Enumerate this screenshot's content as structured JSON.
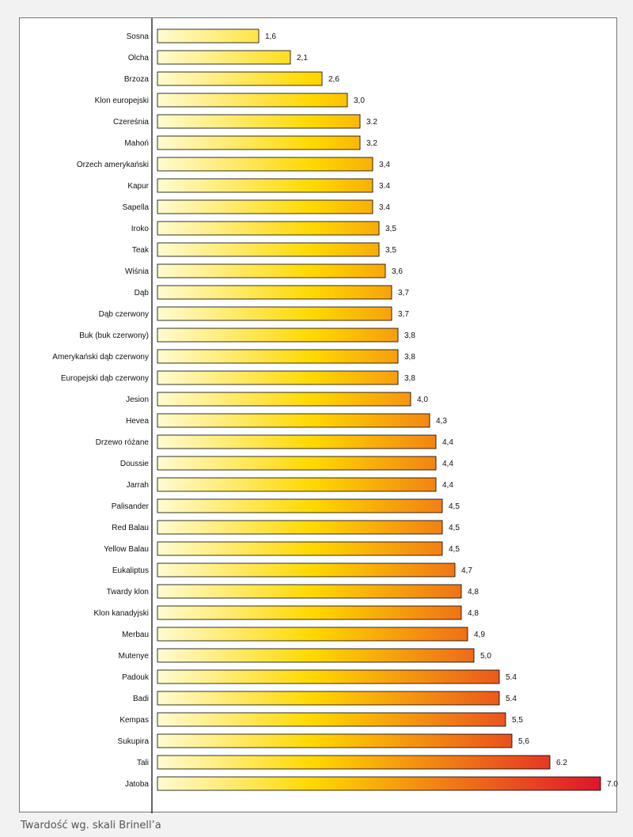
{
  "caption": "Twardość wg. skali Brinell’a",
  "chart_data": {
    "type": "bar",
    "orientation": "horizontal",
    "grid": false,
    "legend": "none",
    "xlim": [
      0,
      7
    ],
    "colors": {
      "gradient_start": "#fffbd0",
      "gradient_mid": "#ffd800",
      "gradient_end": "#e0142c",
      "bar_outline": "#000000",
      "axis": "#000000"
    },
    "categories": [
      "Sosna",
      "Olcha",
      "Brzoza",
      "Klon europejski",
      "Czereśnia",
      "Mahoń",
      "Orzech amerykański",
      "Kapur",
      "Sapella",
      "Iroko",
      "Teak",
      "Wiśnia",
      "Dąb",
      "Dąb czerwony",
      "Buk (buk czerwony)",
      "Amerykański dąb czerwony",
      "Europejski dąb czerwony",
      "Jesion",
      "Hevea",
      "Drzewo różane",
      "Doussie",
      "Jarrah",
      "Palisander",
      "Red Balau",
      "Yellow Balau",
      "Eukaliptus",
      "Twardy klon",
      "Klon kanadyjski",
      "Merbau",
      "Mutenye",
      "Padouk",
      "Badi",
      "Kempas",
      "Sukupira",
      "Tali",
      "Jatoba"
    ],
    "values": [
      1.6,
      2.1,
      2.6,
      3.0,
      3.2,
      3.2,
      3.4,
      3.4,
      3.4,
      3.5,
      3.5,
      3.6,
      3.7,
      3.7,
      3.8,
      3.8,
      3.8,
      4.0,
      4.3,
      4.4,
      4.4,
      4.4,
      4.5,
      4.5,
      4.5,
      4.7,
      4.8,
      4.8,
      4.9,
      5.0,
      5.4,
      5.4,
      5.5,
      5.6,
      6.2,
      7.0
    ],
    "value_labels": [
      "1,6",
      "2,1",
      "2,6",
      "3,0",
      "3.2",
      "3,2",
      "3,4",
      "3.4",
      "3.4",
      "3,5",
      "3,5",
      "3,6",
      "3,7",
      "3,7",
      "3,8",
      "3,8",
      "3,8",
      "4,0",
      "4,3",
      "4,4",
      "4,4",
      "4,4",
      "4,5",
      "4,5",
      "4,5",
      "4,7",
      "4,8",
      "4,8",
      "4,9",
      "5,0",
      "5.4",
      "5.4",
      "5,5",
      "5,6",
      "6.2",
      "7.0"
    ]
  }
}
